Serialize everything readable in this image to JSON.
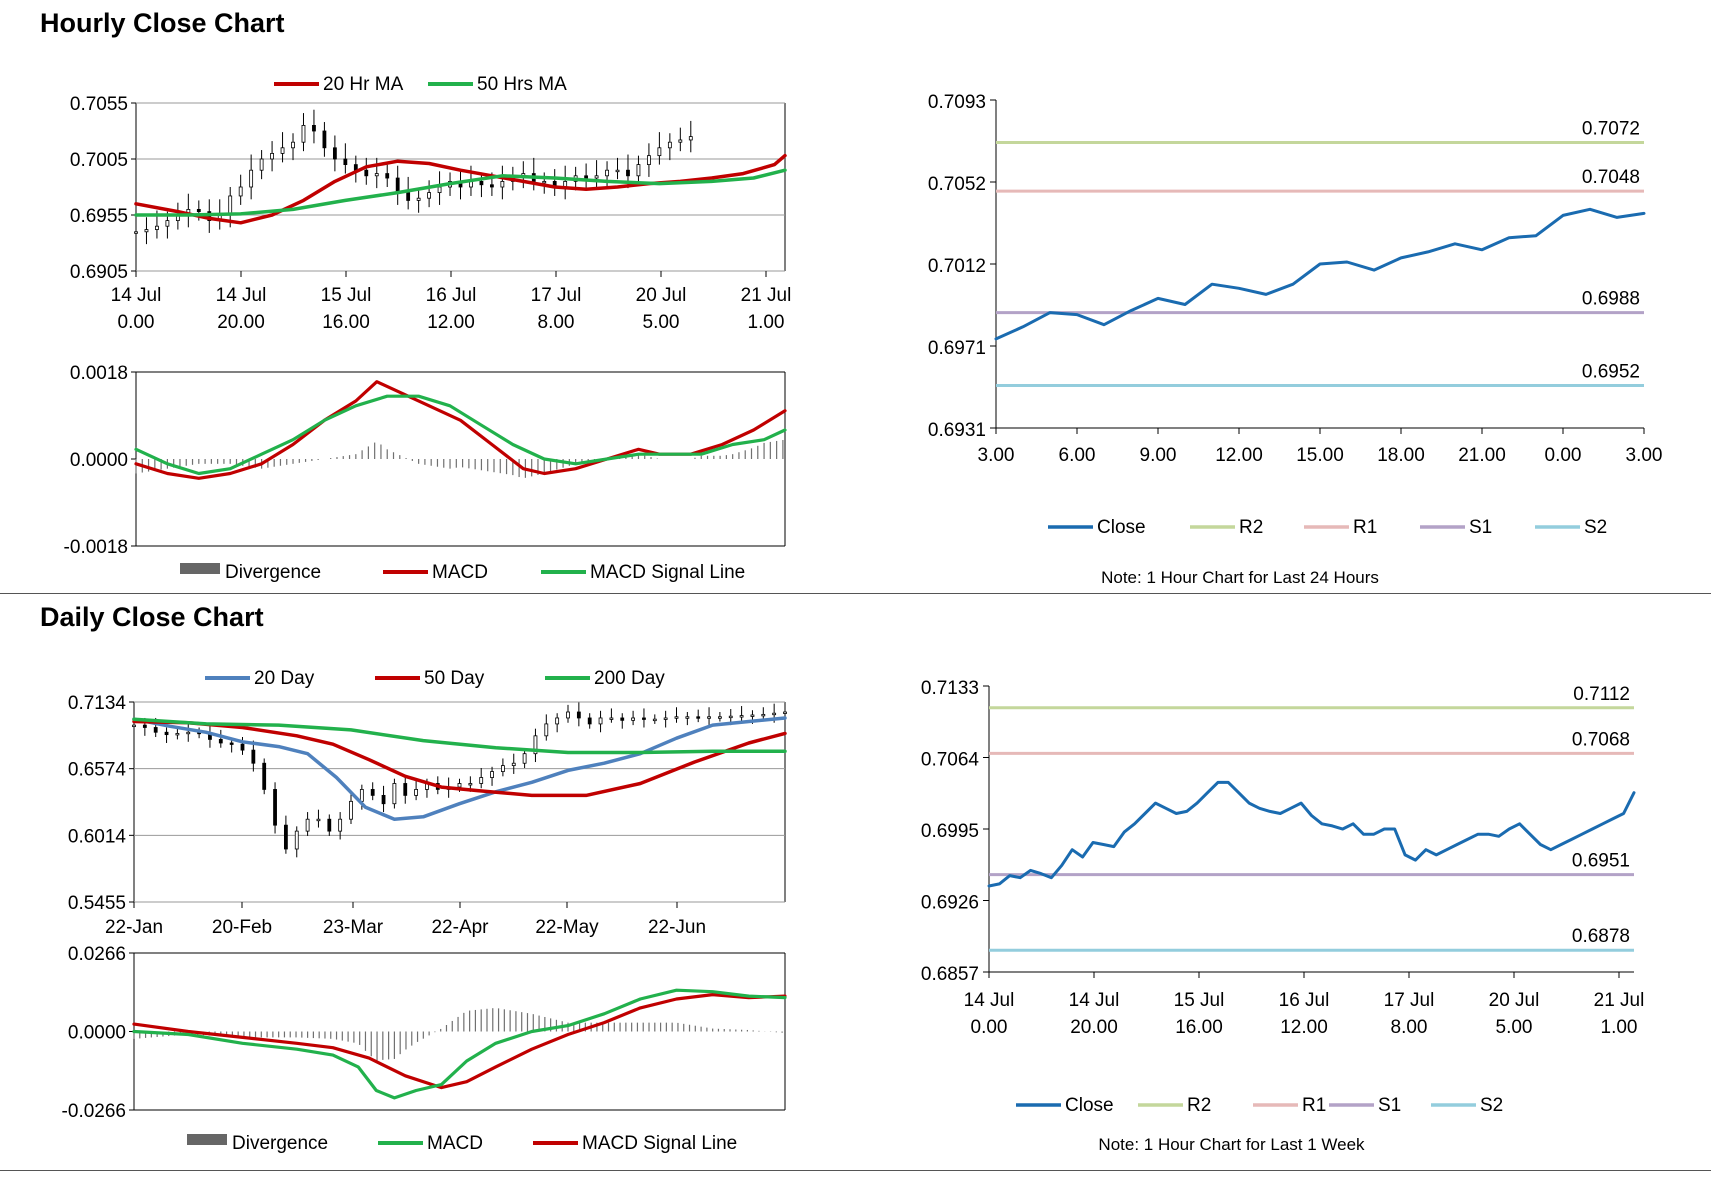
{
  "sections": {
    "hourly_title": "Hourly Close Chart",
    "daily_title": "Daily Close Chart"
  },
  "colors": {
    "close": "#1a6bb0",
    "r2": "#c4d79b",
    "r1": "#e6b9b8",
    "s1": "#b3a2c7",
    "s2": "#93cddd",
    "red": "#c00000",
    "green": "#22b14c",
    "blue": "#4f81bd",
    "divergence": "#808080"
  },
  "chart_data": [
    {
      "id": "hourly_candles",
      "type": "candlestick",
      "legend": [
        "20 Hr MA",
        "50 Hrs MA"
      ],
      "yticks": [
        "0.7055",
        "0.7005",
        "0.6955",
        "0.6905"
      ],
      "ylim": [
        0.6905,
        0.7055
      ],
      "xticks": [
        [
          "14 Jul",
          "0.00"
        ],
        [
          "14 Jul",
          "20.00"
        ],
        [
          "15 Jul",
          "16.00"
        ],
        [
          "16 Jul",
          "12.00"
        ],
        [
          "17 Jul",
          "8.00"
        ],
        [
          "20 Jul",
          "5.00"
        ],
        [
          "21 Jul",
          "1.00"
        ]
      ],
      "n_points": 124,
      "close": [
        0.694,
        0.6942,
        0.6945,
        0.695,
        0.6955,
        0.696,
        0.6958,
        0.695,
        0.6955,
        0.6972,
        0.698,
        0.6995,
        0.7005,
        0.701,
        0.7015,
        0.702,
        0.7035,
        0.703,
        0.7015,
        0.7005,
        0.7,
        0.6995,
        0.699,
        0.6992,
        0.6988,
        0.6975,
        0.6968,
        0.697,
        0.6975,
        0.698,
        0.6985,
        0.698,
        0.6985,
        0.6982,
        0.698,
        0.6985,
        0.699,
        0.6992,
        0.6985,
        0.6985,
        0.698,
        0.6985,
        0.699,
        0.6988,
        0.699,
        0.6995,
        0.6995,
        0.699,
        0.7,
        0.7008,
        0.7015,
        0.702,
        0.7022,
        0.7025
      ],
      "close_x": [
        0,
        2,
        4,
        6,
        8,
        10,
        12,
        14,
        16,
        18,
        20,
        22,
        24,
        26,
        28,
        30,
        32,
        34,
        36,
        38,
        40,
        42,
        44,
        46,
        48,
        50,
        52,
        54,
        56,
        58,
        60,
        62,
        64,
        66,
        68,
        70,
        72,
        74,
        76,
        78,
        80,
        82,
        84,
        86,
        88,
        90,
        92,
        94,
        96,
        98,
        100,
        102,
        104,
        106
      ],
      "ma20": [
        [
          0,
          0.6965
        ],
        [
          8,
          0.6958
        ],
        [
          14,
          0.6952
        ],
        [
          20,
          0.6948
        ],
        [
          26,
          0.6955
        ],
        [
          32,
          0.6968
        ],
        [
          38,
          0.6985
        ],
        [
          44,
          0.6998
        ],
        [
          50,
          0.7003
        ],
        [
          56,
          0.7001
        ],
        [
          62,
          0.6995
        ],
        [
          68,
          0.699
        ],
        [
          74,
          0.6985
        ],
        [
          80,
          0.698
        ],
        [
          86,
          0.6978
        ],
        [
          92,
          0.698
        ],
        [
          98,
          0.6983
        ],
        [
          104,
          0.6985
        ],
        [
          110,
          0.6988
        ],
        [
          116,
          0.6992
        ],
        [
          122,
          0.7
        ],
        [
          124,
          0.7008
        ]
      ],
      "ma50": [
        [
          0,
          0.6955
        ],
        [
          10,
          0.6955
        ],
        [
          20,
          0.6956
        ],
        [
          30,
          0.696
        ],
        [
          40,
          0.6968
        ],
        [
          50,
          0.6975
        ],
        [
          60,
          0.6983
        ],
        [
          70,
          0.699
        ],
        [
          80,
          0.6988
        ],
        [
          90,
          0.6985
        ],
        [
          100,
          0.6983
        ],
        [
          110,
          0.6985
        ],
        [
          118,
          0.6988
        ],
        [
          124,
          0.6995
        ]
      ]
    },
    {
      "id": "hourly_macd",
      "type": "line",
      "yticks": [
        "0.0018",
        "0.0000",
        "-0.0018"
      ],
      "ylim": [
        -0.0018,
        0.0018
      ],
      "legend": [
        "Divergence",
        "MACD",
        "MACD Signal Line"
      ],
      "macd": [
        [
          0,
          -0.0001
        ],
        [
          6,
          -0.0003
        ],
        [
          12,
          -0.0004
        ],
        [
          18,
          -0.0003
        ],
        [
          24,
          -0.0001
        ],
        [
          30,
          0.0003
        ],
        [
          36,
          0.0008
        ],
        [
          42,
          0.0012
        ],
        [
          46,
          0.0016
        ],
        [
          50,
          0.0014
        ],
        [
          56,
          0.0011
        ],
        [
          62,
          0.0008
        ],
        [
          68,
          0.0003
        ],
        [
          74,
          -0.0002
        ],
        [
          78,
          -0.0003
        ],
        [
          84,
          -0.0002
        ],
        [
          90,
          0.0
        ],
        [
          96,
          0.0002
        ],
        [
          100,
          0.0001
        ],
        [
          106,
          0.0001
        ],
        [
          112,
          0.0003
        ],
        [
          118,
          0.0006
        ],
        [
          124,
          0.001
        ]
      ],
      "signal": [
        [
          0,
          0.0002
        ],
        [
          6,
          -0.0001
        ],
        [
          12,
          -0.0003
        ],
        [
          18,
          -0.0002
        ],
        [
          24,
          0.0001
        ],
        [
          30,
          0.0004
        ],
        [
          36,
          0.0008
        ],
        [
          42,
          0.0011
        ],
        [
          48,
          0.0013
        ],
        [
          54,
          0.0013
        ],
        [
          60,
          0.0011
        ],
        [
          66,
          0.0007
        ],
        [
          72,
          0.0003
        ],
        [
          78,
          0.0
        ],
        [
          84,
          -0.0001
        ],
        [
          90,
          0.0
        ],
        [
          96,
          0.0001
        ],
        [
          102,
          0.0001
        ],
        [
          108,
          0.0001
        ],
        [
          114,
          0.0003
        ],
        [
          120,
          0.0004
        ],
        [
          124,
          0.0006
        ]
      ]
    },
    {
      "id": "hourly_close",
      "type": "line",
      "yticks": [
        "0.7093",
        "0.7052",
        "0.7012",
        "0.6971",
        "0.6931"
      ],
      "ylim": [
        0.6931,
        0.7093
      ],
      "xticks": [
        "3.00",
        "6.00",
        "9.00",
        "12.00",
        "15.00",
        "18.00",
        "21.00",
        "0.00",
        "3.00"
      ],
      "x": [
        3,
        4,
        5,
        6,
        7,
        8,
        9,
        10,
        11,
        12,
        13,
        14,
        15,
        16,
        17,
        18,
        19,
        20,
        21,
        22,
        23,
        24,
        25,
        26,
        27
      ],
      "close": [
        0.6975,
        0.6981,
        0.6988,
        0.6987,
        0.6982,
        0.6989,
        0.6995,
        0.6992,
        0.7002,
        0.7,
        0.6997,
        0.7002,
        0.7012,
        0.7013,
        0.7009,
        0.7015,
        0.7018,
        0.7022,
        0.7019,
        0.7025,
        0.7026,
        0.7036,
        0.7039,
        0.7035,
        0.7037
      ],
      "levels": [
        {
          "name": "R2",
          "value": 0.7072,
          "label": "0.7072"
        },
        {
          "name": "R1",
          "value": 0.7048,
          "label": "0.7048"
        },
        {
          "name": "S1",
          "value": 0.6988,
          "label": "0.6988"
        },
        {
          "name": "S2",
          "value": 0.6952,
          "label": "0.6952"
        }
      ],
      "legend": [
        "Close",
        "R2",
        "R1",
        "S1",
        "S2"
      ],
      "note": "Note: 1 Hour Chart for Last 24 Hours"
    },
    {
      "id": "daily_candles",
      "type": "candlestick",
      "legend": [
        "20 Day",
        "50 Day",
        "200 Day"
      ],
      "yticks": [
        "0.7134",
        "0.6574",
        "0.6014",
        "0.5455"
      ],
      "ylim": [
        0.5455,
        0.7134
      ],
      "xticks": [
        "22-Jan",
        "20-Feb",
        "23-Mar",
        "22-Apr",
        "22-May",
        "22-Jun"
      ],
      "close_x": [
        0,
        3,
        6,
        9,
        12,
        15,
        18,
        21,
        24,
        27,
        30,
        33,
        36,
        39,
        42,
        45,
        48,
        51,
        54,
        57,
        60,
        63,
        66,
        69,
        72,
        75,
        78,
        81,
        84,
        87,
        90,
        93,
        96,
        99,
        102,
        105,
        108,
        111,
        114,
        117,
        120,
        123,
        126,
        129,
        132,
        135,
        138,
        141,
        144,
        147,
        150,
        153,
        156,
        159,
        162,
        165,
        168,
        171,
        174,
        177,
        180
      ],
      "close": [
        0.694,
        0.692,
        0.688,
        0.686,
        0.687,
        0.688,
        0.687,
        0.682,
        0.679,
        0.678,
        0.673,
        0.662,
        0.64,
        0.61,
        0.59,
        0.605,
        0.615,
        0.615,
        0.605,
        0.615,
        0.63,
        0.64,
        0.635,
        0.628,
        0.645,
        0.635,
        0.64,
        0.645,
        0.64,
        0.642,
        0.645,
        0.645,
        0.65,
        0.655,
        0.66,
        0.662,
        0.67,
        0.685,
        0.695,
        0.7,
        0.705,
        0.7,
        0.695,
        0.7,
        0.7,
        0.698,
        0.7,
        0.699,
        0.699,
        0.7,
        0.701,
        0.701,
        0.7005,
        0.701,
        0.701,
        0.7015,
        0.702,
        0.7025,
        0.703,
        0.704,
        0.705
      ],
      "day20": [
        [
          0,
          0.699
        ],
        [
          10,
          0.693
        ],
        [
          20,
          0.688
        ],
        [
          30,
          0.68
        ],
        [
          40,
          0.676
        ],
        [
          48,
          0.67
        ],
        [
          56,
          0.65
        ],
        [
          64,
          0.625
        ],
        [
          72,
          0.615
        ],
        [
          80,
          0.617
        ],
        [
          90,
          0.628
        ],
        [
          100,
          0.638
        ],
        [
          110,
          0.646
        ],
        [
          120,
          0.656
        ],
        [
          130,
          0.662
        ],
        [
          140,
          0.67
        ],
        [
          150,
          0.683
        ],
        [
          160,
          0.694
        ],
        [
          170,
          0.697
        ],
        [
          180,
          0.7
        ]
      ],
      "day50": [
        [
          0,
          0.697
        ],
        [
          15,
          0.696
        ],
        [
          30,
          0.692
        ],
        [
          45,
          0.685
        ],
        [
          55,
          0.678
        ],
        [
          65,
          0.665
        ],
        [
          75,
          0.651
        ],
        [
          85,
          0.642
        ],
        [
          95,
          0.639
        ],
        [
          110,
          0.635
        ],
        [
          125,
          0.635
        ],
        [
          140,
          0.645
        ],
        [
          155,
          0.663
        ],
        [
          170,
          0.679
        ],
        [
          180,
          0.687
        ]
      ],
      "day200": [
        [
          0,
          0.699
        ],
        [
          20,
          0.695
        ],
        [
          40,
          0.694
        ],
        [
          60,
          0.69
        ],
        [
          80,
          0.681
        ],
        [
          100,
          0.675
        ],
        [
          120,
          0.671
        ],
        [
          140,
          0.671
        ],
        [
          160,
          0.672
        ],
        [
          180,
          0.672
        ]
      ]
    },
    {
      "id": "daily_macd",
      "type": "line",
      "yticks": [
        "0.0266",
        "0.0000",
        "-0.0266"
      ],
      "ylim": [
        -0.0266,
        0.0266
      ],
      "legend": [
        "Divergence",
        "MACD",
        "MACD Signal Line"
      ],
      "macd": [
        [
          0,
          0.0
        ],
        [
          15,
          -0.001
        ],
        [
          30,
          -0.004
        ],
        [
          45,
          -0.006
        ],
        [
          55,
          -0.008
        ],
        [
          62,
          -0.012
        ],
        [
          67,
          -0.02
        ],
        [
          72,
          -0.0225
        ],
        [
          78,
          -0.02
        ],
        [
          85,
          -0.018
        ],
        [
          92,
          -0.01
        ],
        [
          100,
          -0.004
        ],
        [
          110,
          0.0
        ],
        [
          120,
          0.002
        ],
        [
          130,
          0.006
        ],
        [
          140,
          0.011
        ],
        [
          150,
          0.014
        ],
        [
          160,
          0.0135
        ],
        [
          170,
          0.012
        ],
        [
          180,
          0.0115
        ]
      ],
      "signal": [
        [
          0,
          0.0025
        ],
        [
          15,
          0.0
        ],
        [
          30,
          -0.002
        ],
        [
          45,
          -0.004
        ],
        [
          55,
          -0.0055
        ],
        [
          65,
          -0.009
        ],
        [
          75,
          -0.015
        ],
        [
          85,
          -0.019
        ],
        [
          92,
          -0.017
        ],
        [
          100,
          -0.012
        ],
        [
          110,
          -0.006
        ],
        [
          120,
          -0.001
        ],
        [
          130,
          0.003
        ],
        [
          140,
          0.008
        ],
        [
          150,
          0.011
        ],
        [
          160,
          0.0125
        ],
        [
          170,
          0.0115
        ],
        [
          180,
          0.012
        ]
      ]
    },
    {
      "id": "daily_close",
      "type": "line",
      "yticks": [
        "0.7133",
        "0.7064",
        "0.6995",
        "0.6926",
        "0.6857"
      ],
      "ylim": [
        0.6857,
        0.7133
      ],
      "xticks": [
        [
          "14 Jul",
          "0.00"
        ],
        [
          "14 Jul",
          "20.00"
        ],
        [
          "15 Jul",
          "16.00"
        ],
        [
          "16 Jul",
          "12.00"
        ],
        [
          "17 Jul",
          "8.00"
        ],
        [
          "20 Jul",
          "5.00"
        ],
        [
          "21 Jul",
          "1.00"
        ]
      ],
      "x": [
        0,
        2,
        4,
        6,
        8,
        10,
        12,
        14,
        16,
        18,
        20,
        22,
        24,
        26,
        28,
        30,
        32,
        34,
        36,
        38,
        40,
        42,
        44,
        46,
        48,
        50,
        52,
        54,
        56,
        58,
        60,
        62,
        64,
        66,
        68,
        70,
        72,
        74,
        76,
        78,
        80,
        82,
        84,
        86,
        88,
        90,
        92,
        94,
        96,
        98,
        100,
        102,
        104,
        106,
        108,
        110,
        112,
        114,
        116,
        118,
        120,
        122,
        124
      ],
      "close": [
        0.694,
        0.6942,
        0.695,
        0.6948,
        0.6955,
        0.6952,
        0.6948,
        0.696,
        0.6975,
        0.6968,
        0.6982,
        0.698,
        0.6978,
        0.6992,
        0.7,
        0.701,
        0.702,
        0.7015,
        0.701,
        0.7012,
        0.702,
        0.703,
        0.704,
        0.704,
        0.703,
        0.702,
        0.7015,
        0.7012,
        0.701,
        0.7015,
        0.702,
        0.7008,
        0.7,
        0.6998,
        0.6995,
        0.7,
        0.699,
        0.699,
        0.6995,
        0.6995,
        0.697,
        0.6965,
        0.6975,
        0.697,
        0.6975,
        0.698,
        0.6985,
        0.699,
        0.699,
        0.6988,
        0.6995,
        0.7,
        0.699,
        0.698,
        0.6975,
        0.698,
        0.6985,
        0.699,
        0.6995,
        0.7,
        0.7005,
        0.701,
        0.703
      ],
      "levels": [
        {
          "name": "R2",
          "value": 0.7112,
          "label": "0.7112"
        },
        {
          "name": "R1",
          "value": 0.7068,
          "label": "0.7068"
        },
        {
          "name": "S1",
          "value": 0.6951,
          "label": "0.6951"
        },
        {
          "name": "S2",
          "value": 0.6878,
          "label": "0.6878"
        }
      ],
      "legend": [
        "Close",
        "R2",
        "R1",
        "S1",
        "S2"
      ],
      "note": "Note: 1 Hour Chart for Last 1 Week"
    }
  ]
}
